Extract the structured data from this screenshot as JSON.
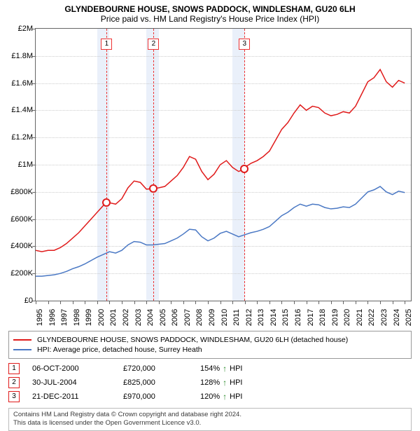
{
  "title": "GLYNDEBOURNE HOUSE, SNOWS PADDOCK, WINDLESHAM, GU20 6LH",
  "subtitle": "Price paid vs. HM Land Registry's House Price Index (HPI)",
  "chart": {
    "type": "line",
    "background_color": "#ffffff",
    "highlight_color": "#eaf0fa",
    "grid_color": "#cccccc",
    "border_color": "#666666",
    "x_years": [
      1995,
      1996,
      1997,
      1998,
      1999,
      2000,
      2001,
      2002,
      2003,
      2004,
      2005,
      2006,
      2007,
      2008,
      2009,
      2010,
      2011,
      2012,
      2013,
      2014,
      2015,
      2016,
      2017,
      2018,
      2019,
      2020,
      2021,
      2022,
      2023,
      2024,
      2025
    ],
    "xlim": [
      1995,
      2025.5
    ],
    "ylim": [
      0,
      2000000
    ],
    "ytick_step": 200000,
    "ylabels": [
      "£0",
      "£200K",
      "£400K",
      "£600K",
      "£800K",
      "£1M",
      "£1.2M",
      "£1.4M",
      "£1.6M",
      "£1.8M",
      "£2M"
    ],
    "highlight_bands": [
      [
        2000,
        2001
      ],
      [
        2004,
        2005
      ],
      [
        2011,
        2012
      ]
    ],
    "series": [
      {
        "name": "property",
        "color": "#e01b1b",
        "label": "GLYNDEBOURNE HOUSE, SNOWS PADDOCK, WINDLESHAM, GU20 6LH (detached house)",
        "points": [
          [
            1995,
            370000
          ],
          [
            1995.5,
            360000
          ],
          [
            1996,
            370000
          ],
          [
            1996.5,
            370000
          ],
          [
            1997,
            390000
          ],
          [
            1997.5,
            420000
          ],
          [
            1998,
            460000
          ],
          [
            1998.5,
            500000
          ],
          [
            1999,
            550000
          ],
          [
            1999.5,
            600000
          ],
          [
            2000,
            650000
          ],
          [
            2000.5,
            700000
          ],
          [
            2000.77,
            720000
          ],
          [
            2001,
            720000
          ],
          [
            2001.5,
            710000
          ],
          [
            2002,
            750000
          ],
          [
            2002.5,
            830000
          ],
          [
            2003,
            880000
          ],
          [
            2003.5,
            870000
          ],
          [
            2004,
            820000
          ],
          [
            2004.58,
            825000
          ],
          [
            2005,
            830000
          ],
          [
            2005.5,
            840000
          ],
          [
            2006,
            880000
          ],
          [
            2006.5,
            920000
          ],
          [
            2007,
            980000
          ],
          [
            2007.5,
            1060000
          ],
          [
            2008,
            1040000
          ],
          [
            2008.5,
            950000
          ],
          [
            2009,
            890000
          ],
          [
            2009.5,
            930000
          ],
          [
            2010,
            1000000
          ],
          [
            2010.5,
            1030000
          ],
          [
            2011,
            980000
          ],
          [
            2011.5,
            950000
          ],
          [
            2011.97,
            970000
          ],
          [
            2012,
            980000
          ],
          [
            2012.5,
            1010000
          ],
          [
            2013,
            1030000
          ],
          [
            2013.5,
            1060000
          ],
          [
            2014,
            1100000
          ],
          [
            2014.5,
            1180000
          ],
          [
            2015,
            1260000
          ],
          [
            2015.5,
            1310000
          ],
          [
            2016,
            1380000
          ],
          [
            2016.5,
            1440000
          ],
          [
            2017,
            1400000
          ],
          [
            2017.5,
            1430000
          ],
          [
            2018,
            1420000
          ],
          [
            2018.5,
            1380000
          ],
          [
            2019,
            1360000
          ],
          [
            2019.5,
            1370000
          ],
          [
            2020,
            1390000
          ],
          [
            2020.5,
            1380000
          ],
          [
            2021,
            1430000
          ],
          [
            2021.5,
            1520000
          ],
          [
            2022,
            1610000
          ],
          [
            2022.5,
            1640000
          ],
          [
            2023,
            1700000
          ],
          [
            2023.5,
            1610000
          ],
          [
            2024,
            1570000
          ],
          [
            2024.5,
            1620000
          ],
          [
            2025,
            1600000
          ]
        ]
      },
      {
        "name": "hpi",
        "color": "#4a78c4",
        "label": "HPI: Average price, detached house, Surrey Heath",
        "points": [
          [
            1995,
            180000
          ],
          [
            1995.5,
            180000
          ],
          [
            1996,
            185000
          ],
          [
            1996.5,
            190000
          ],
          [
            1997,
            200000
          ],
          [
            1997.5,
            215000
          ],
          [
            1998,
            235000
          ],
          [
            1998.5,
            250000
          ],
          [
            1999,
            270000
          ],
          [
            1999.5,
            295000
          ],
          [
            2000,
            320000
          ],
          [
            2000.5,
            340000
          ],
          [
            2001,
            360000
          ],
          [
            2001.5,
            350000
          ],
          [
            2002,
            370000
          ],
          [
            2002.5,
            410000
          ],
          [
            2003,
            435000
          ],
          [
            2003.5,
            430000
          ],
          [
            2004,
            410000
          ],
          [
            2004.5,
            410000
          ],
          [
            2005,
            415000
          ],
          [
            2005.5,
            420000
          ],
          [
            2006,
            440000
          ],
          [
            2006.5,
            460000
          ],
          [
            2007,
            490000
          ],
          [
            2007.5,
            525000
          ],
          [
            2008,
            520000
          ],
          [
            2008.5,
            470000
          ],
          [
            2009,
            440000
          ],
          [
            2009.5,
            460000
          ],
          [
            2010,
            495000
          ],
          [
            2010.5,
            510000
          ],
          [
            2011,
            490000
          ],
          [
            2011.5,
            470000
          ],
          [
            2012,
            485000
          ],
          [
            2012.5,
            500000
          ],
          [
            2013,
            510000
          ],
          [
            2013.5,
            525000
          ],
          [
            2014,
            545000
          ],
          [
            2014.5,
            585000
          ],
          [
            2015,
            625000
          ],
          [
            2015.5,
            650000
          ],
          [
            2016,
            685000
          ],
          [
            2016.5,
            710000
          ],
          [
            2017,
            695000
          ],
          [
            2017.5,
            710000
          ],
          [
            2018,
            705000
          ],
          [
            2018.5,
            685000
          ],
          [
            2019,
            675000
          ],
          [
            2019.5,
            680000
          ],
          [
            2020,
            690000
          ],
          [
            2020.5,
            685000
          ],
          [
            2021,
            710000
          ],
          [
            2021.5,
            755000
          ],
          [
            2022,
            800000
          ],
          [
            2022.5,
            815000
          ],
          [
            2023,
            840000
          ],
          [
            2023.5,
            800000
          ],
          [
            2024,
            780000
          ],
          [
            2024.5,
            805000
          ],
          [
            2025,
            795000
          ]
        ]
      }
    ],
    "markers": [
      {
        "n": "1",
        "year": 2000.77,
        "value": 720000,
        "color": "#e01b1b"
      },
      {
        "n": "2",
        "year": 2004.58,
        "value": 825000,
        "color": "#e01b1b"
      },
      {
        "n": "3",
        "year": 2011.97,
        "value": 970000,
        "color": "#e01b1b"
      }
    ],
    "label_fontsize": 11,
    "line_width": 1.5
  },
  "legend": [
    {
      "color": "#e01b1b",
      "text": "GLYNDEBOURNE HOUSE, SNOWS PADDOCK, WINDLESHAM, GU20 6LH (detached house)"
    },
    {
      "color": "#4a78c4",
      "text": "HPI: Average price, detached house, Surrey Heath"
    }
  ],
  "sales": [
    {
      "n": "1",
      "date": "06-OCT-2000",
      "price": "£720,000",
      "delta": "154%",
      "vs": "HPI"
    },
    {
      "n": "2",
      "date": "30-JUL-2004",
      "price": "£825,000",
      "delta": "128%",
      "vs": "HPI"
    },
    {
      "n": "3",
      "date": "21-DEC-2011",
      "price": "£970,000",
      "delta": "120%",
      "vs": "HPI"
    }
  ],
  "footer": {
    "line1": "Contains HM Land Registry data © Crown copyright and database right 2024.",
    "line2": "This data is licensed under the Open Government Licence v3.0."
  },
  "colors": {
    "marker_border": "#e01b1b",
    "arrow": "#2a8a2a"
  }
}
